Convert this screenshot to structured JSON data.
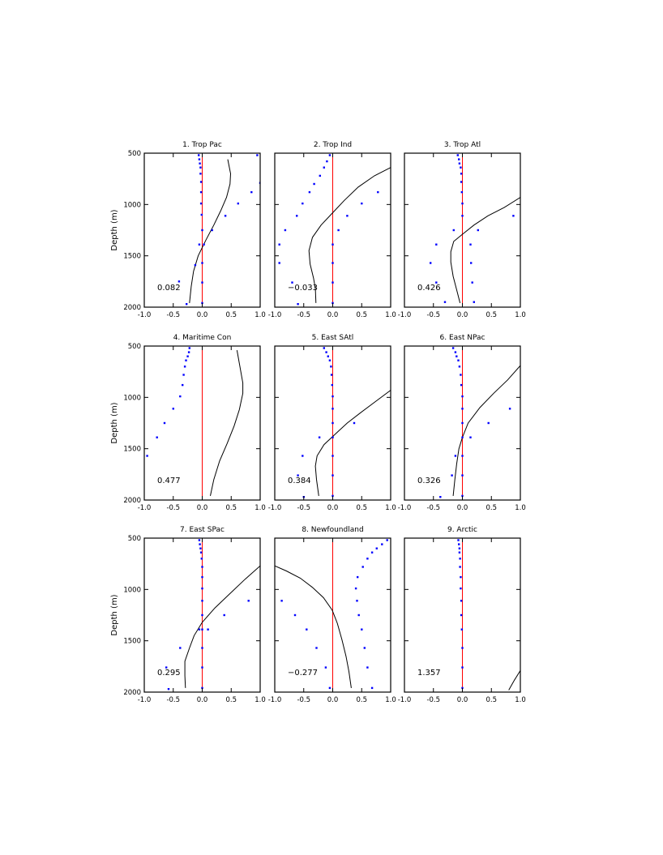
{
  "chart_data": {
    "type": "scatter",
    "ylabel": "Depth (m)",
    "xlim": [
      -1.0,
      1.0
    ],
    "ylim": [
      500,
      2000
    ],
    "y_inverted": true,
    "x_ticks": [
      "-1.0",
      "-0.5",
      "0.0",
      "0.5",
      "1.0"
    ],
    "y_ticks": [
      "500",
      "1000",
      "1500",
      "2000"
    ],
    "line_colors": {
      "zero_line": "#ff0000",
      "profile": "#000000",
      "points": "#0000ff"
    },
    "panels": [
      {
        "title": "1. Trop Pac",
        "value_label": "0.082",
        "points": [
          [
            -0.06,
            520
          ],
          [
            -0.05,
            560
          ],
          [
            -0.04,
            600
          ],
          [
            -0.03,
            640
          ],
          [
            -0.03,
            700
          ],
          [
            -0.02,
            780
          ],
          [
            -0.02,
            880
          ],
          [
            -0.02,
            990
          ],
          [
            -0.01,
            1100
          ],
          [
            0.0,
            1250
          ],
          [
            -0.05,
            1390
          ],
          [
            0.03,
            1390
          ],
          [
            -0.12,
            1590
          ],
          [
            0.0,
            1570
          ],
          [
            0.0,
            1760
          ],
          [
            0.0,
            1960
          ],
          [
            -0.27,
            1970
          ],
          [
            -0.4,
            1750
          ],
          [
            0.95,
            520
          ],
          [
            1.0,
            790
          ],
          [
            0.85,
            880
          ],
          [
            0.62,
            990
          ],
          [
            0.4,
            1110
          ],
          [
            0.17,
            1250
          ]
        ],
        "line": [
          [
            0.44,
            560
          ],
          [
            0.49,
            700
          ],
          [
            0.48,
            800
          ],
          [
            0.42,
            930
          ],
          [
            0.32,
            1060
          ],
          [
            0.2,
            1200
          ],
          [
            0.06,
            1350
          ],
          [
            -0.07,
            1500
          ],
          [
            -0.15,
            1650
          ],
          [
            -0.19,
            1800
          ],
          [
            -0.22,
            1960
          ]
        ]
      },
      {
        "title": "2. Trop Ind",
        "value_label": "−0.033",
        "points": [
          [
            -0.05,
            520
          ],
          [
            -0.1,
            580
          ],
          [
            -0.15,
            640
          ],
          [
            -0.22,
            720
          ],
          [
            -0.32,
            800
          ],
          [
            -0.4,
            880
          ],
          [
            -0.52,
            990
          ],
          [
            -0.62,
            1110
          ],
          [
            -0.82,
            1250
          ],
          [
            -0.92,
            1390
          ],
          [
            -0.92,
            1570
          ],
          [
            -0.7,
            1760
          ],
          [
            -0.6,
            1970
          ],
          [
            0.78,
            880
          ],
          [
            0.5,
            990
          ],
          [
            0.25,
            1110
          ],
          [
            0.1,
            1250
          ],
          [
            0.0,
            1390
          ],
          [
            0.0,
            1570
          ],
          [
            0.0,
            1760
          ],
          [
            0.0,
            1960
          ]
        ],
        "line": [
          [
            1.0,
            640
          ],
          [
            0.72,
            720
          ],
          [
            0.44,
            830
          ],
          [
            0.2,
            960
          ],
          [
            0.0,
            1080
          ],
          [
            -0.2,
            1200
          ],
          [
            -0.35,
            1320
          ],
          [
            -0.41,
            1450
          ],
          [
            -0.39,
            1580
          ],
          [
            -0.33,
            1720
          ],
          [
            -0.3,
            1820
          ],
          [
            -0.29,
            1960
          ]
        ]
      },
      {
        "title": "3. Trop Atl",
        "value_label": "0.426",
        "points": [
          [
            -0.08,
            520
          ],
          [
            -0.06,
            560
          ],
          [
            -0.05,
            600
          ],
          [
            -0.03,
            640
          ],
          [
            -0.02,
            700
          ],
          [
            -0.02,
            780
          ],
          [
            -0.01,
            880
          ],
          [
            0.0,
            990
          ],
          [
            0.0,
            1110
          ],
          [
            -0.15,
            1250
          ],
          [
            -0.45,
            1390
          ],
          [
            -0.55,
            1570
          ],
          [
            -0.45,
            1760
          ],
          [
            -0.3,
            1950
          ],
          [
            0.88,
            1110
          ],
          [
            0.27,
            1250
          ],
          [
            0.14,
            1390
          ],
          [
            0.15,
            1570
          ],
          [
            0.17,
            1760
          ],
          [
            0.2,
            1950
          ]
        ],
        "line": [
          [
            1.0,
            930
          ],
          [
            0.72,
            1030
          ],
          [
            0.44,
            1110
          ],
          [
            0.2,
            1200
          ],
          [
            0.0,
            1290
          ],
          [
            -0.15,
            1360
          ],
          [
            -0.2,
            1460
          ],
          [
            -0.2,
            1560
          ],
          [
            -0.16,
            1700
          ],
          [
            -0.1,
            1830
          ],
          [
            -0.04,
            1960
          ]
        ]
      },
      {
        "title": "4. Maritime Con",
        "value_label": "0.477",
        "points": [
          [
            -0.22,
            520
          ],
          [
            -0.23,
            560
          ],
          [
            -0.25,
            600
          ],
          [
            -0.28,
            640
          ],
          [
            -0.3,
            700
          ],
          [
            -0.32,
            780
          ],
          [
            -0.34,
            880
          ],
          [
            -0.38,
            990
          ],
          [
            -0.5,
            1110
          ],
          [
            -0.65,
            1250
          ],
          [
            -0.78,
            1390
          ],
          [
            -0.95,
            1570
          ]
        ],
        "line": [
          [
            0.6,
            540
          ],
          [
            0.65,
            700
          ],
          [
            0.7,
            860
          ],
          [
            0.7,
            960
          ],
          [
            0.64,
            1120
          ],
          [
            0.55,
            1280
          ],
          [
            0.43,
            1450
          ],
          [
            0.3,
            1620
          ],
          [
            0.2,
            1800
          ],
          [
            0.14,
            1960
          ]
        ]
      },
      {
        "title": "5. East SAtl",
        "value_label": "0.384",
        "points": [
          [
            -0.15,
            520
          ],
          [
            -0.11,
            560
          ],
          [
            -0.08,
            600
          ],
          [
            -0.05,
            640
          ],
          [
            -0.03,
            700
          ],
          [
            -0.02,
            780
          ],
          [
            -0.01,
            880
          ],
          [
            0.0,
            990
          ],
          [
            0.0,
            1110
          ],
          [
            0.0,
            1250
          ],
          [
            0.0,
            1390
          ],
          [
            0.0,
            1570
          ],
          [
            0.0,
            1760
          ],
          [
            0.0,
            1960
          ],
          [
            0.37,
            1250
          ],
          [
            -0.23,
            1390
          ],
          [
            -0.52,
            1570
          ],
          [
            -0.6,
            1760
          ],
          [
            -0.5,
            1970
          ]
        ],
        "line": [
          [
            1.0,
            930
          ],
          [
            0.74,
            1040
          ],
          [
            0.48,
            1150
          ],
          [
            0.25,
            1250
          ],
          [
            0.04,
            1360
          ],
          [
            -0.15,
            1460
          ],
          [
            -0.27,
            1570
          ],
          [
            -0.3,
            1670
          ],
          [
            -0.28,
            1800
          ],
          [
            -0.24,
            1960
          ]
        ]
      },
      {
        "title": "6. East NPac",
        "value_label": "0.326",
        "points": [
          [
            -0.16,
            520
          ],
          [
            -0.12,
            560
          ],
          [
            -0.1,
            600
          ],
          [
            -0.07,
            640
          ],
          [
            -0.05,
            700
          ],
          [
            -0.03,
            780
          ],
          [
            -0.02,
            880
          ],
          [
            0.0,
            990
          ],
          [
            0.0,
            1110
          ],
          [
            0.0,
            1250
          ],
          [
            0.0,
            1390
          ],
          [
            -0.12,
            1570
          ],
          [
            -0.18,
            1760
          ],
          [
            -0.38,
            1970
          ],
          [
            0.82,
            1110
          ],
          [
            0.45,
            1250
          ],
          [
            0.14,
            1390
          ],
          [
            0.0,
            1570
          ],
          [
            0.0,
            1760
          ],
          [
            0.0,
            1960
          ]
        ],
        "line": [
          [
            1.0,
            690
          ],
          [
            0.78,
            830
          ],
          [
            0.54,
            960
          ],
          [
            0.3,
            1100
          ],
          [
            0.1,
            1250
          ],
          [
            0.0,
            1390
          ],
          [
            -0.06,
            1500
          ],
          [
            -0.1,
            1650
          ],
          [
            -0.13,
            1800
          ],
          [
            -0.16,
            1960
          ]
        ]
      },
      {
        "title": "7. East SPac",
        "value_label": "0.295",
        "points": [
          [
            -0.05,
            520
          ],
          [
            -0.04,
            560
          ],
          [
            -0.03,
            600
          ],
          [
            -0.02,
            640
          ],
          [
            -0.01,
            700
          ],
          [
            0.0,
            780
          ],
          [
            0.0,
            880
          ],
          [
            0.0,
            990
          ],
          [
            0.0,
            1110
          ],
          [
            0.0,
            1250
          ],
          [
            0.0,
            1390
          ],
          [
            0.0,
            1570
          ],
          [
            0.0,
            1760
          ],
          [
            0.0,
            1960
          ],
          [
            0.8,
            1110
          ],
          [
            0.38,
            1250
          ],
          [
            0.1,
            1390
          ],
          [
            -0.05,
            1390
          ],
          [
            -0.38,
            1570
          ],
          [
            -0.62,
            1760
          ],
          [
            -0.58,
            1970
          ]
        ],
        "line": [
          [
            1.0,
            770
          ],
          [
            0.74,
            900
          ],
          [
            0.48,
            1040
          ],
          [
            0.22,
            1180
          ],
          [
            0.0,
            1320
          ],
          [
            -0.14,
            1450
          ],
          [
            -0.22,
            1570
          ],
          [
            -0.3,
            1700
          ],
          [
            -0.3,
            1840
          ],
          [
            -0.29,
            1960
          ]
        ]
      },
      {
        "title": "8. Newfoundland",
        "value_label": "−0.277",
        "points": [
          [
            0.94,
            520
          ],
          [
            0.85,
            560
          ],
          [
            0.76,
            600
          ],
          [
            0.68,
            640
          ],
          [
            0.6,
            700
          ],
          [
            0.52,
            780
          ],
          [
            0.43,
            880
          ],
          [
            0.4,
            990
          ],
          [
            0.42,
            1110
          ],
          [
            0.45,
            1250
          ],
          [
            0.5,
            1390
          ],
          [
            0.55,
            1570
          ],
          [
            0.6,
            1760
          ],
          [
            0.68,
            1960
          ],
          [
            -0.88,
            1110
          ],
          [
            -0.65,
            1250
          ],
          [
            -0.45,
            1390
          ],
          [
            -0.28,
            1570
          ],
          [
            -0.12,
            1760
          ],
          [
            -0.05,
            1960
          ]
        ],
        "line": [
          [
            -1.0,
            770
          ],
          [
            -0.8,
            820
          ],
          [
            -0.56,
            890
          ],
          [
            -0.35,
            980
          ],
          [
            -0.16,
            1080
          ],
          [
            -0.01,
            1200
          ],
          [
            0.08,
            1330
          ],
          [
            0.16,
            1490
          ],
          [
            0.23,
            1650
          ],
          [
            0.28,
            1800
          ],
          [
            0.32,
            1960
          ]
        ]
      },
      {
        "title": "9. Arctic",
        "value_label": "1.357",
        "points": [
          [
            -0.07,
            520
          ],
          [
            -0.06,
            560
          ],
          [
            -0.05,
            600
          ],
          [
            -0.05,
            640
          ],
          [
            -0.04,
            700
          ],
          [
            -0.04,
            780
          ],
          [
            -0.03,
            880
          ],
          [
            -0.03,
            990
          ],
          [
            -0.02,
            1110
          ],
          [
            -0.02,
            1250
          ],
          [
            -0.01,
            1390
          ],
          [
            0.0,
            1570
          ],
          [
            0.0,
            1760
          ],
          [
            0.0,
            1960
          ]
        ],
        "line": [
          [
            0.8,
            1980
          ],
          [
            0.9,
            1880
          ],
          [
            1.0,
            1790
          ]
        ]
      }
    ]
  }
}
